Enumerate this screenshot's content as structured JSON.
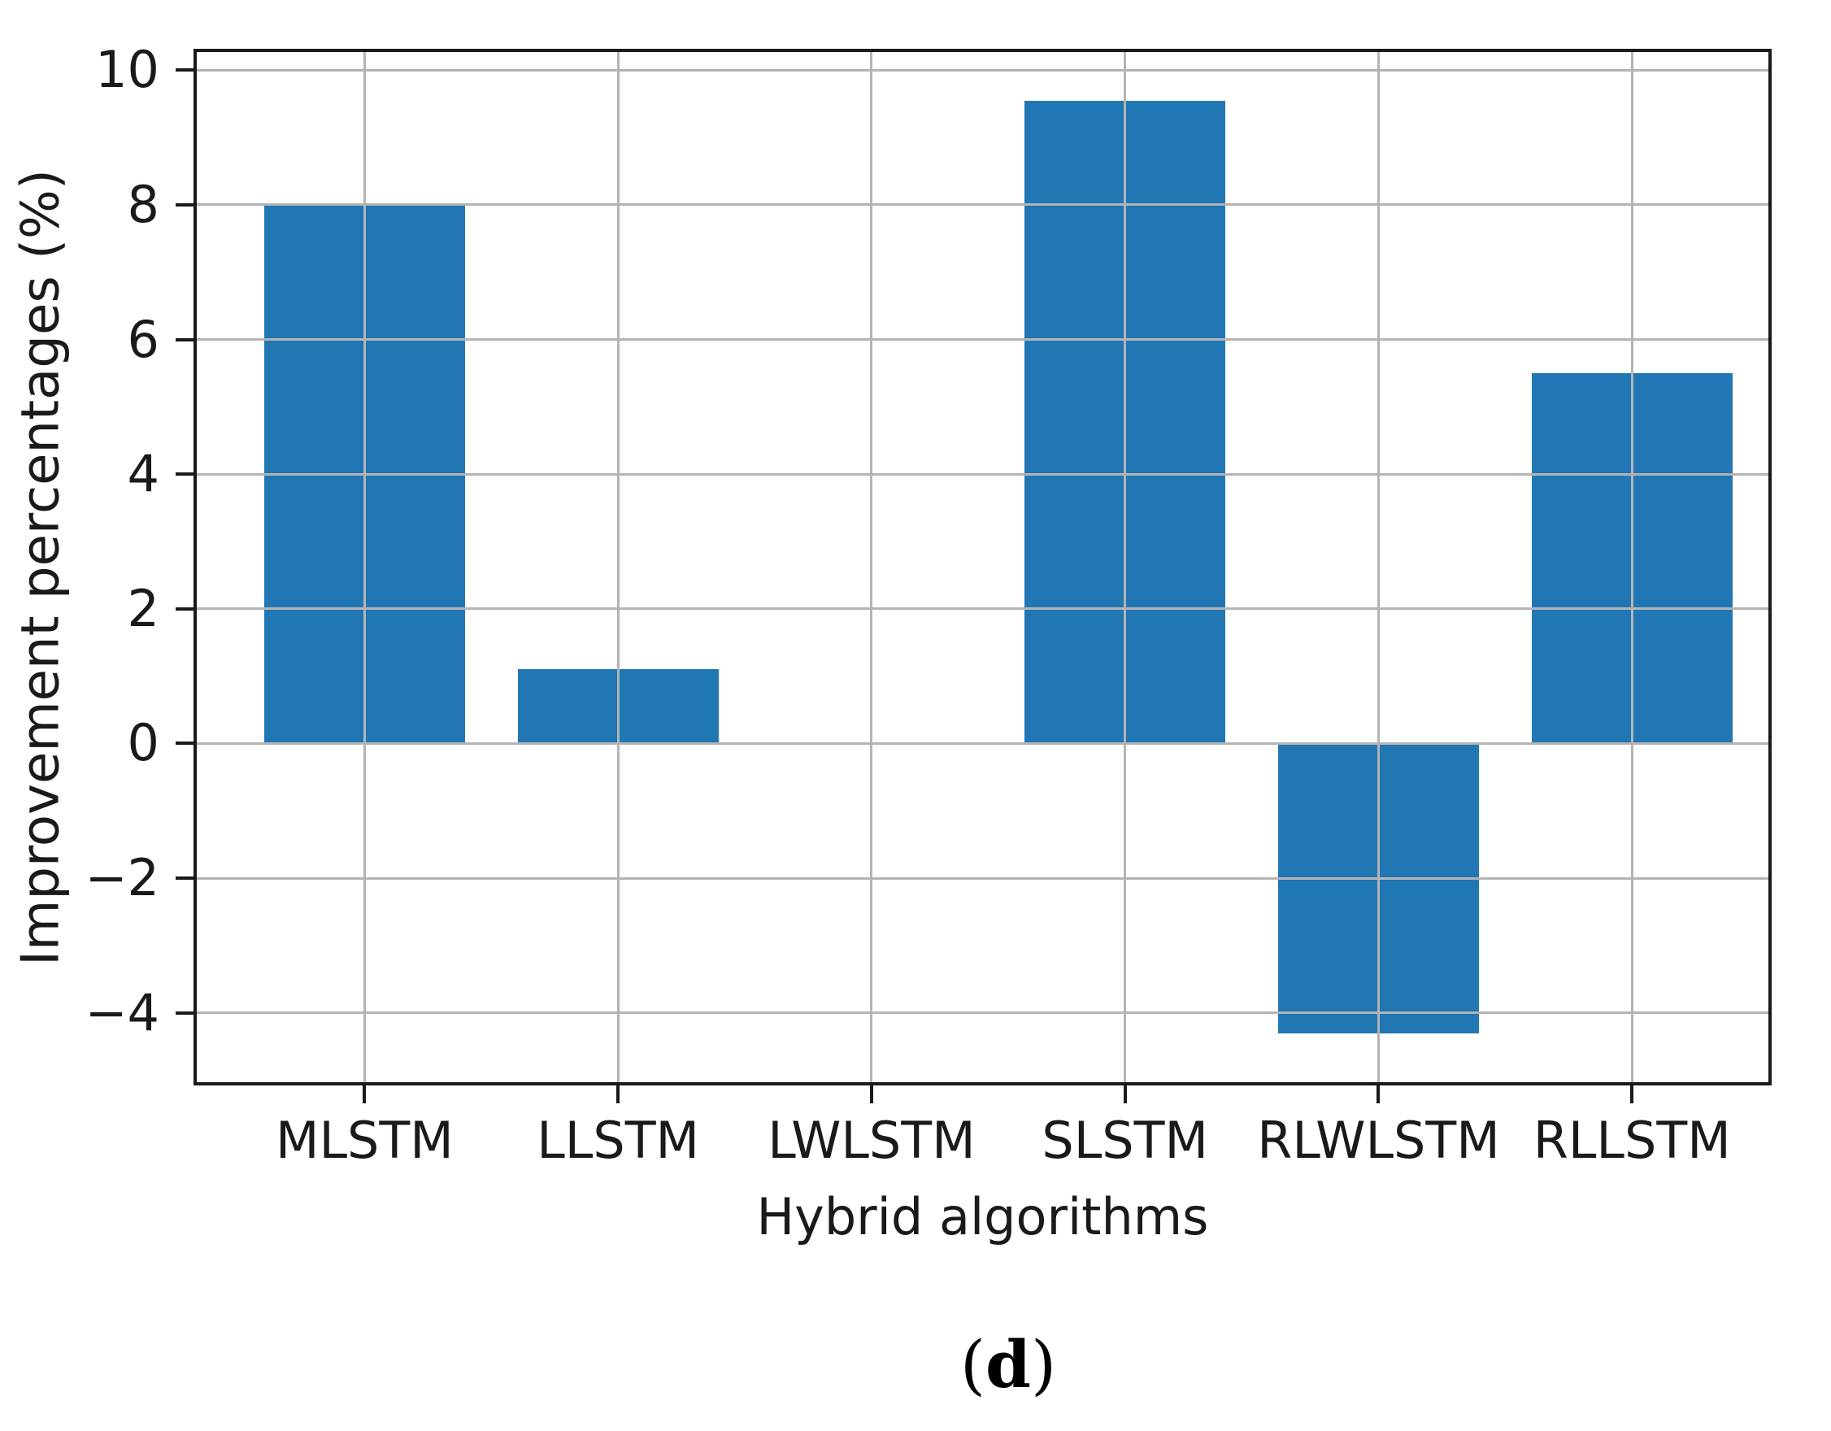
{
  "caption": {
    "open": "(",
    "letter": "d",
    "close": ")"
  },
  "chart_data": {
    "type": "bar",
    "title": "",
    "categories": [
      "MLSTM",
      "LLSTM",
      "LWLSTM",
      "SLSTM",
      "RLWLSTM",
      "RLLSTM"
    ],
    "values": [
      8.0,
      1.1,
      0.0,
      9.55,
      -4.3,
      5.5
    ],
    "xlabel": "Hybrid algorithms",
    "ylabel": "Improvement percentages (%)",
    "ylim": [
      -5.03,
      10.27
    ],
    "yticks": [
      {
        "value": 10,
        "label": "10"
      },
      {
        "value": 8,
        "label": "8"
      },
      {
        "value": 6,
        "label": "6"
      },
      {
        "value": 4,
        "label": "4"
      },
      {
        "value": 2,
        "label": "2"
      },
      {
        "value": 0,
        "label": "0"
      },
      {
        "value": -2,
        "label": "−2"
      },
      {
        "value": -4,
        "label": "−4"
      }
    ],
    "grid": true,
    "grid_on_top": true,
    "legend": null,
    "colors": {
      "bar": "#2176b4",
      "grid": "#b4b4b4",
      "axis": "#1a1a1a",
      "text": "#1a1a1a",
      "background": "#ffffff"
    }
  }
}
